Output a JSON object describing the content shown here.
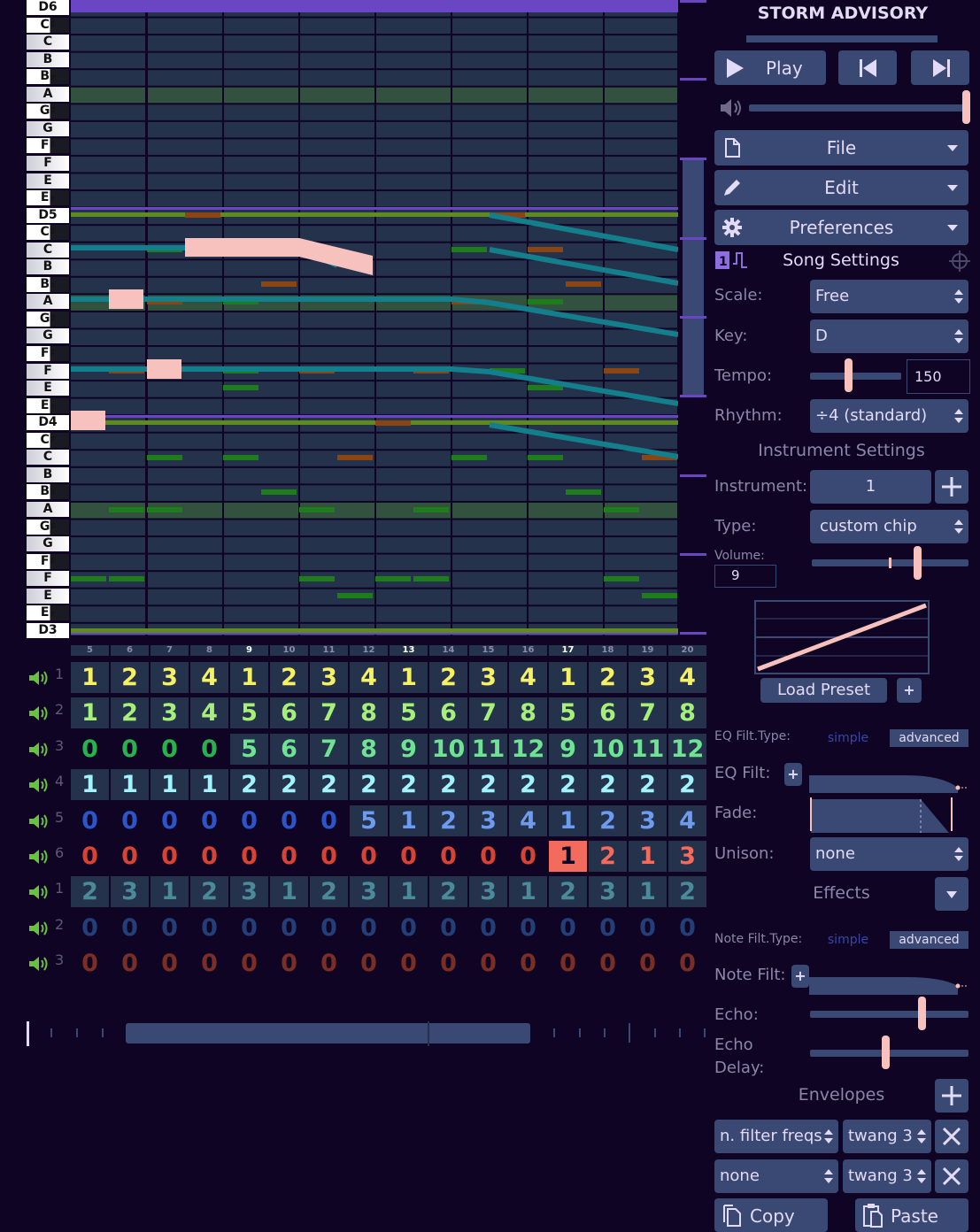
{
  "song": {
    "title": "STORM ADVISORY"
  },
  "piano_keys": [
    "D6",
    "C♯",
    "C",
    "B",
    "B♭",
    "A",
    "G♯",
    "G",
    "F♯",
    "F",
    "E",
    "E♭",
    "D5",
    "C♯",
    "C",
    "B",
    "B♭",
    "A",
    "G♯",
    "G",
    "F♯",
    "F",
    "E",
    "E♭",
    "D4",
    "C♯",
    "C",
    "B",
    "B♭",
    "A",
    "G♯",
    "G",
    "F♯",
    "F",
    "E",
    "E♭",
    "D3"
  ],
  "bar_numbers": [
    "5",
    "6",
    "7",
    "8",
    "9",
    "10",
    "11",
    "12",
    "13",
    "14",
    "15",
    "16",
    "17",
    "18",
    "19",
    "20"
  ],
  "channels": [
    {
      "label": "1",
      "cells": [
        "1",
        "2",
        "3",
        "4",
        "1",
        "2",
        "3",
        "4",
        "1",
        "2",
        "3",
        "4",
        "1",
        "2",
        "3",
        "4"
      ]
    },
    {
      "label": "2",
      "cells": [
        "1",
        "2",
        "3",
        "4",
        "5",
        "6",
        "7",
        "8",
        "5",
        "6",
        "7",
        "8",
        "5",
        "6",
        "7",
        "8"
      ]
    },
    {
      "label": "3",
      "cells": [
        "0",
        "0",
        "0",
        "0",
        "5",
        "6",
        "7",
        "8",
        "9",
        "10",
        "11",
        "12",
        "9",
        "10",
        "11",
        "12"
      ]
    },
    {
      "label": "4",
      "cells": [
        "1",
        "1",
        "1",
        "1",
        "2",
        "2",
        "2",
        "2",
        "2",
        "2",
        "2",
        "2",
        "2",
        "2",
        "2",
        "2"
      ]
    },
    {
      "label": "5",
      "cells": [
        "0",
        "0",
        "0",
        "0",
        "0",
        "0",
        "0",
        "5",
        "1",
        "2",
        "3",
        "4",
        "1",
        "2",
        "3",
        "4"
      ]
    },
    {
      "label": "6",
      "cells": [
        "0",
        "0",
        "0",
        "0",
        "0",
        "0",
        "0",
        "0",
        "0",
        "0",
        "0",
        "0",
        "1",
        "2",
        "1",
        "3"
      ]
    },
    {
      "label": "1",
      "cells": [
        "2",
        "3",
        "1",
        "2",
        "3",
        "1",
        "2",
        "3",
        "1",
        "2",
        "3",
        "1",
        "2",
        "3",
        "1",
        "2"
      ]
    },
    {
      "label": "2",
      "cells": [
        "0",
        "0",
        "0",
        "0",
        "0",
        "0",
        "0",
        "0",
        "0",
        "0",
        "0",
        "0",
        "0",
        "0",
        "0",
        "0"
      ]
    },
    {
      "label": "3",
      "cells": [
        "0",
        "0",
        "0",
        "0",
        "0",
        "0",
        "0",
        "0",
        "0",
        "0",
        "0",
        "0",
        "0",
        "0",
        "0",
        "0"
      ]
    }
  ],
  "transport": {
    "play_label": "Play"
  },
  "menus": {
    "file": "File",
    "edit": "Edit",
    "preferences": "Preferences"
  },
  "song_settings": {
    "heading": "Song Settings",
    "scale_label": "Scale:",
    "scale_value": "Free",
    "key_label": "Key:",
    "key_value": "D",
    "tempo_label": "Tempo:",
    "tempo_value": "150",
    "rhythm_label": "Rhythm:",
    "rhythm_value": "÷4 (standard)"
  },
  "instrument_settings": {
    "heading": "Instrument Settings",
    "instrument_label": "Instrument:",
    "instrument_value": "1",
    "type_label": "Type:",
    "type_value": "custom chip",
    "volume_label": "Volume:",
    "volume_value": "9",
    "load_preset": "Load Preset",
    "eq_filt_type_label": "EQ Filt.Type:",
    "toggle_simple": "simple",
    "toggle_advanced": "advanced",
    "eq_filt_label": "EQ Filt:",
    "fade_label": "Fade:",
    "unison_label": "Unison:",
    "unison_value": "none",
    "effects_label": "Effects",
    "note_filt_type_label": "Note Filt.Type:",
    "note_filt_label": "Note Filt:",
    "echo_label": "Echo:",
    "echo_delay_label": "Echo Delay:",
    "envelopes_label": "Envelopes",
    "envelopes": [
      {
        "target": "n. filter freqs",
        "envelope": "twang 3"
      },
      {
        "target": "none",
        "envelope": "twang 3"
      }
    ],
    "copy_label": "Copy",
    "paste_label": "Paste"
  },
  "colors": {
    "background": "#0f0424",
    "grid_cell": "#25324c",
    "accent_purple": "#6a45c4",
    "selected_note": "#f7c1be",
    "button": "#3a4874"
  }
}
